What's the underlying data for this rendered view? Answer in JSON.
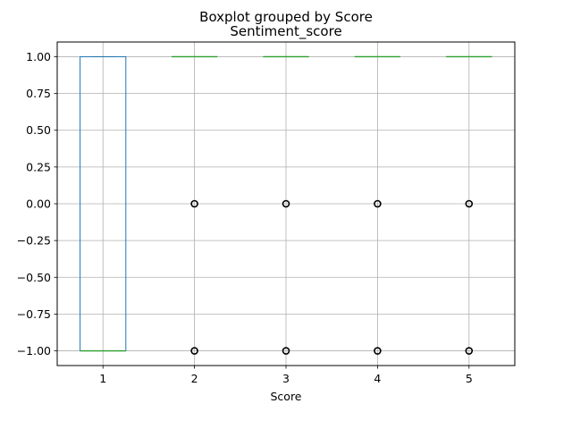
{
  "chart_data": {
    "type": "box",
    "suptitle": "Boxplot grouped by Score",
    "title": "Sentiment_score",
    "xlabel": "Score",
    "ylabel": "",
    "categories": [
      "1",
      "2",
      "3",
      "4",
      "5"
    ],
    "boxes": [
      {
        "category": "1",
        "whisker_low": -1.0,
        "q1": -1.0,
        "median": -1.0,
        "q3": 1.0,
        "whisker_high": 1.0,
        "outliers": []
      },
      {
        "category": "2",
        "whisker_low": 1.0,
        "q1": 1.0,
        "median": 1.0,
        "q3": 1.0,
        "whisker_high": 1.0,
        "outliers": [
          0.0,
          -1.0
        ]
      },
      {
        "category": "3",
        "whisker_low": 1.0,
        "q1": 1.0,
        "median": 1.0,
        "q3": 1.0,
        "whisker_high": 1.0,
        "outliers": [
          0.0,
          -1.0
        ]
      },
      {
        "category": "4",
        "whisker_low": 1.0,
        "q1": 1.0,
        "median": 1.0,
        "q3": 1.0,
        "whisker_high": 1.0,
        "outliers": [
          0.0,
          -1.0
        ]
      },
      {
        "category": "5",
        "whisker_low": 1.0,
        "q1": 1.0,
        "median": 1.0,
        "q3": 1.0,
        "whisker_high": 1.0,
        "outliers": [
          0.0,
          -1.0
        ]
      }
    ],
    "yticks": [
      1.0,
      0.75,
      0.5,
      0.25,
      0.0,
      -0.25,
      -0.5,
      -0.75,
      -1.0
    ],
    "ytick_labels": [
      "1.00",
      "0.75",
      "0.50",
      "0.25",
      "0.00",
      "−0.25",
      "−0.50",
      "−0.75",
      "−1.00"
    ],
    "ylim": [
      -1.1,
      1.1
    ],
    "grid": true,
    "colors": {
      "box": "#1f77b4",
      "median": "#2ca02c",
      "whisker": "#1f77b4",
      "outlier": "#000000",
      "grid": "#b0b0b0"
    }
  }
}
